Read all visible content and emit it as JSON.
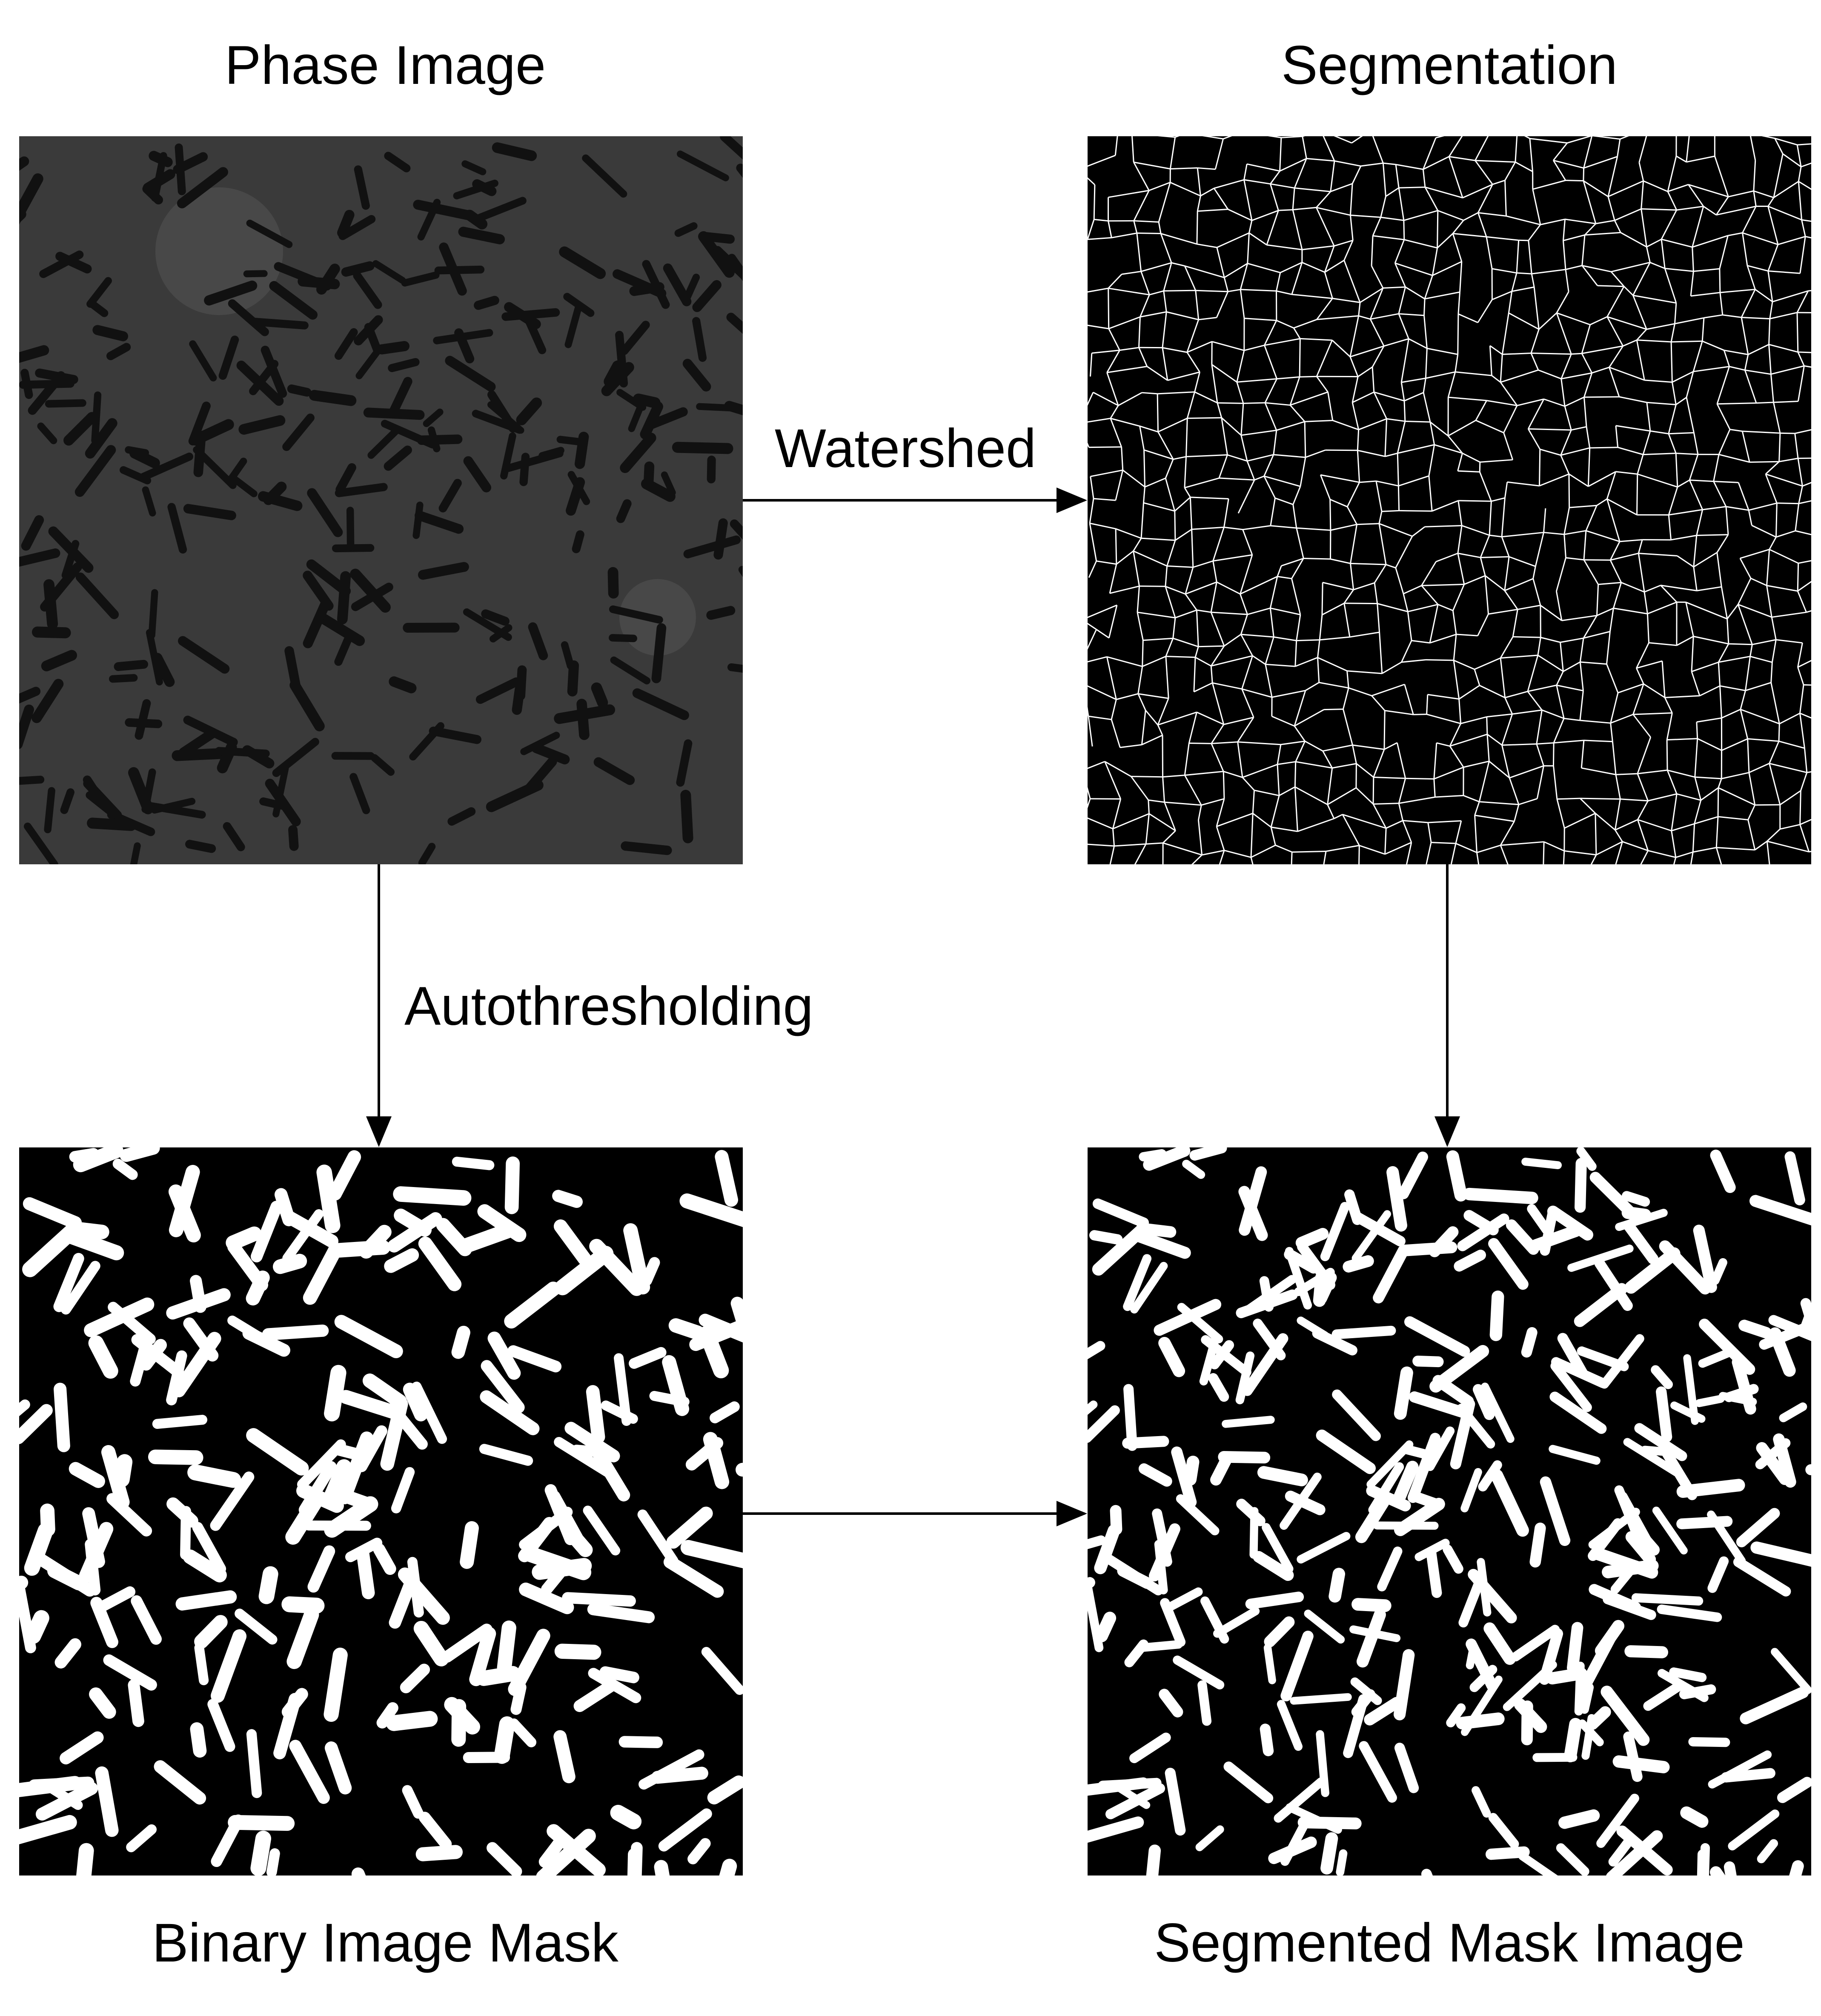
{
  "panels": {
    "phase": {
      "title": "Phase Image"
    },
    "segmentation": {
      "title": "Segmentation"
    },
    "binary": {
      "title": "Binary Image Mask"
    },
    "segmented_mask": {
      "title": "Segmented Mask Image"
    }
  },
  "edges": {
    "phase_to_segmentation": {
      "label": "Watershed"
    },
    "phase_to_binary": {
      "label": "Autothresholding"
    },
    "segmentation_to_segmented": {
      "label": ""
    },
    "binary_to_segmented": {
      "label": ""
    }
  },
  "colors": {
    "phase_background": "#3a3a3a",
    "cell_dark": "#111111",
    "mask_background": "#000000",
    "mask_foreground": "#ffffff",
    "arrow": "#000000"
  }
}
